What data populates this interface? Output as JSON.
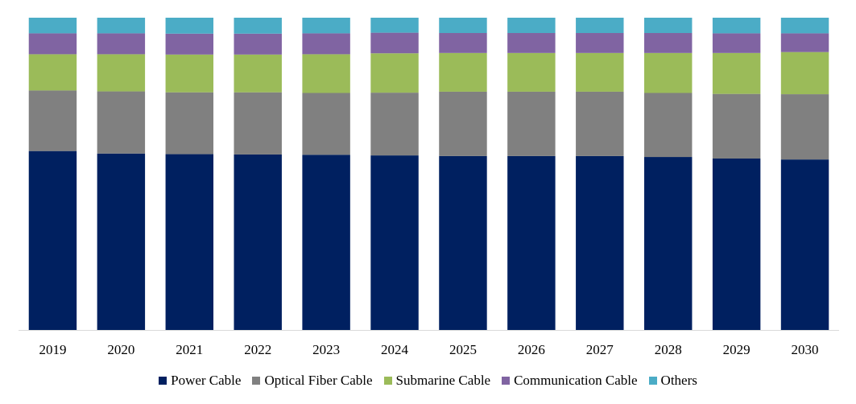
{
  "chart_data": {
    "type": "bar",
    "stacked": true,
    "normalized": true,
    "title": "",
    "xlabel": "",
    "ylabel": "",
    "ylim": [
      0,
      100
    ],
    "grid": false,
    "legend_position": "bottom",
    "categories": [
      "2019",
      "2020",
      "2021",
      "2022",
      "2023",
      "2024",
      "2025",
      "2026",
      "2027",
      "2028",
      "2029",
      "2030"
    ],
    "series": [
      {
        "name": "Power Cable",
        "color": "#002060",
        "values": [
          57.3,
          56.5,
          56.3,
          56.2,
          56.1,
          55.9,
          55.7,
          55.7,
          55.7,
          55.4,
          54.9,
          54.6
        ]
      },
      {
        "name": "Optical Fiber Cable",
        "color": "#808080",
        "values": [
          19.4,
          19.9,
          19.8,
          19.9,
          19.8,
          20.1,
          20.6,
          20.6,
          20.6,
          20.5,
          20.7,
          20.9
        ]
      },
      {
        "name": "Submarine Cable",
        "color": "#9BBB59",
        "values": [
          11.6,
          11.9,
          12.1,
          12.1,
          12.4,
          12.6,
          12.4,
          12.4,
          12.4,
          12.8,
          13.1,
          13.5
        ]
      },
      {
        "name": "Communication Cable",
        "color": "#8064A2",
        "values": [
          6.7,
          6.7,
          6.7,
          6.7,
          6.7,
          6.6,
          6.4,
          6.4,
          6.4,
          6.4,
          6.3,
          6.0
        ]
      },
      {
        "name": "Others",
        "color": "#4BACC6",
        "values": [
          5.0,
          5.0,
          5.1,
          5.1,
          5.0,
          4.8,
          4.9,
          4.9,
          4.9,
          4.9,
          5.0,
          5.0
        ]
      }
    ]
  }
}
